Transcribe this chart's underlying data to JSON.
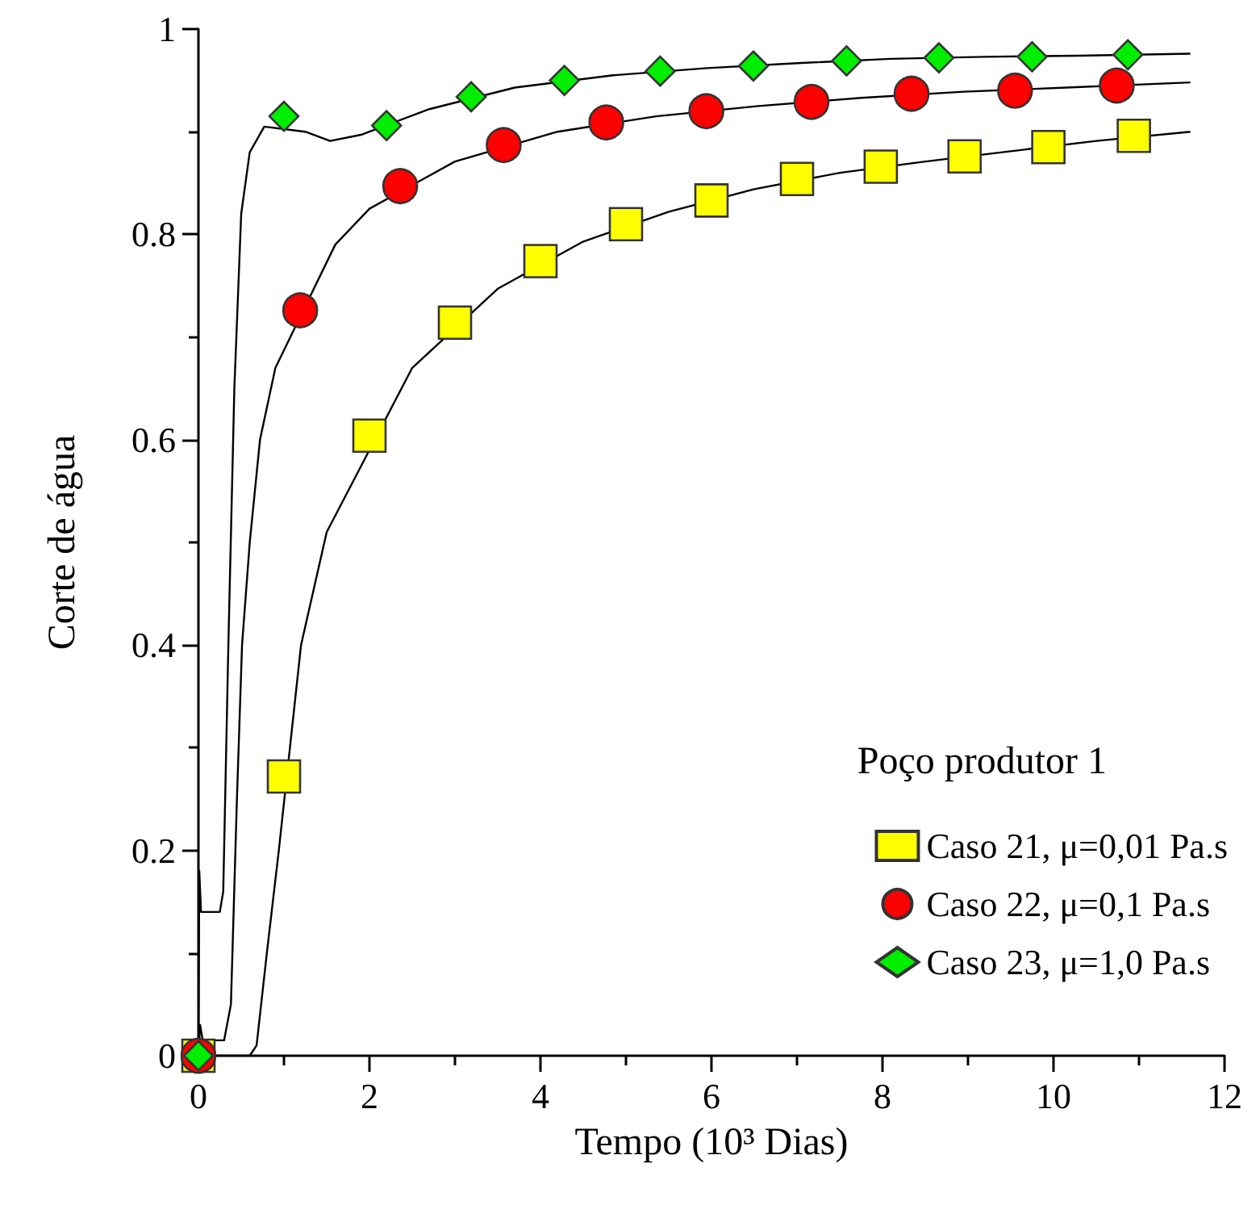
{
  "chart_data": {
    "type": "line",
    "xlabel": "Tempo (10³ Dias)",
    "ylabel": "Corte de água",
    "legend_title": "Poço produtor 1",
    "xlim": [
      0,
      12
    ],
    "xticks": [
      0,
      2,
      4,
      6,
      8,
      10,
      12
    ],
    "ylim": [
      0,
      1
    ],
    "yticks": [
      0,
      0.2,
      0.4,
      0.6,
      0.8,
      1
    ],
    "grid": false,
    "legend": "bottom right",
    "series": [
      {
        "color": "#000000",
        "marker": "none",
        "x": [
          0,
          0.6,
          0.68,
          0.8,
          0.94,
          1.2,
          1.5,
          2.5,
          3.5,
          4.5,
          5.5,
          6.5,
          7.5,
          8.5,
          9.5,
          10.5,
          11.6
        ],
        "values": [
          0,
          0,
          0.01,
          0.1,
          0.2,
          0.4,
          0.51,
          0.67,
          0.747,
          0.793,
          0.822,
          0.844,
          0.86,
          0.871,
          0.881,
          0.891,
          0.9
        ]
      },
      {
        "color": "#000000",
        "marker": "none",
        "x": [
          0,
          0.02,
          0.05,
          0.3,
          0.38,
          0.45,
          0.51,
          0.6,
          0.72,
          0.9,
          1.6,
          2.0,
          3.0,
          4.2,
          5.35,
          6.55,
          7.75,
          8.95,
          10.15,
          11.6
        ],
        "values": [
          0,
          0.03,
          0.015,
          0.015,
          0.05,
          0.25,
          0.4,
          0.5,
          0.6,
          0.67,
          0.79,
          0.825,
          0.871,
          0.9,
          0.915,
          0.925,
          0.933,
          0.939,
          0.943,
          0.948
        ]
      },
      {
        "color": "#000000",
        "marker": "none",
        "x": [
          0,
          0.01,
          0.03,
          0.25,
          0.29,
          0.35,
          0.42,
          0.5,
          0.6,
          0.77,
          1.25,
          1.54,
          1.9,
          2.7,
          3.7,
          4.85,
          5.95,
          7.05,
          8.1,
          9.2,
          10.3,
          11.6
        ],
        "values": [
          0,
          0.18,
          0.14,
          0.14,
          0.16,
          0.4,
          0.65,
          0.82,
          0.88,
          0.905,
          0.9,
          0.891,
          0.897,
          0.922,
          0.943,
          0.955,
          0.962,
          0.967,
          0.971,
          0.973,
          0.974,
          0.976
        ]
      },
      {
        "type": "scatter",
        "name": "Caso 21, μ=0,01 Pa.s",
        "color": "#ffff00",
        "marker": "square",
        "x": [
          0,
          1.0,
          2.0,
          3.0,
          4.0,
          5.0,
          6.0,
          7.0,
          7.98,
          8.96,
          9.94,
          10.94
        ],
        "values": [
          0,
          0.272,
          0.604,
          0.714,
          0.774,
          0.81,
          0.833,
          0.854,
          0.866,
          0.876,
          0.885,
          0.896
        ]
      },
      {
        "type": "scatter",
        "name": "Caso 22, μ=0,1 Pa.s",
        "color": "#ff0000",
        "marker": "circle",
        "x": [
          0,
          1.19,
          2.36,
          3.57,
          4.77,
          5.94,
          7.17,
          8.34,
          9.55,
          10.74
        ],
        "values": [
          0,
          0.726,
          0.847,
          0.887,
          0.909,
          0.92,
          0.929,
          0.937,
          0.94,
          0.945
        ]
      },
      {
        "type": "scatter",
        "name": "Caso 23, μ=1,0 Pa.s",
        "color": "#00ee00",
        "marker": "diamond",
        "x": [
          0,
          1.0,
          2.2,
          3.19,
          4.28,
          5.4,
          6.49,
          7.58,
          8.66,
          9.75,
          10.87
        ],
        "values": [
          0,
          0.915,
          0.906,
          0.934,
          0.95,
          0.959,
          0.964,
          0.969,
          0.972,
          0.973,
          0.975
        ]
      }
    ]
  }
}
